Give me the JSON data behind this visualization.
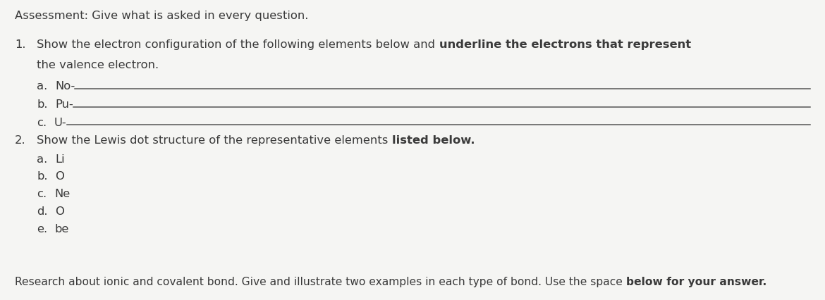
{
  "bg_color": "#f5f5f3",
  "text_color": "#3a3a3a",
  "header": "Assessment: Give what is asked in every question.",
  "q1_items": [
    {
      "label": "a.",
      "element": "No-"
    },
    {
      "label": "b.",
      "element": "Pu-"
    },
    {
      "label": "c.",
      "element": "U-"
    }
  ],
  "q2_items": [
    {
      "label": "a.",
      "element": "Li"
    },
    {
      "label": "b.",
      "element": "O"
    },
    {
      "label": "c.",
      "element": "Ne"
    },
    {
      "label": "d.",
      "element": "O"
    },
    {
      "label": "e.",
      "element": "be"
    }
  ],
  "line_color": "#555555",
  "font_size": 11.8,
  "font_size_small": 11.2
}
